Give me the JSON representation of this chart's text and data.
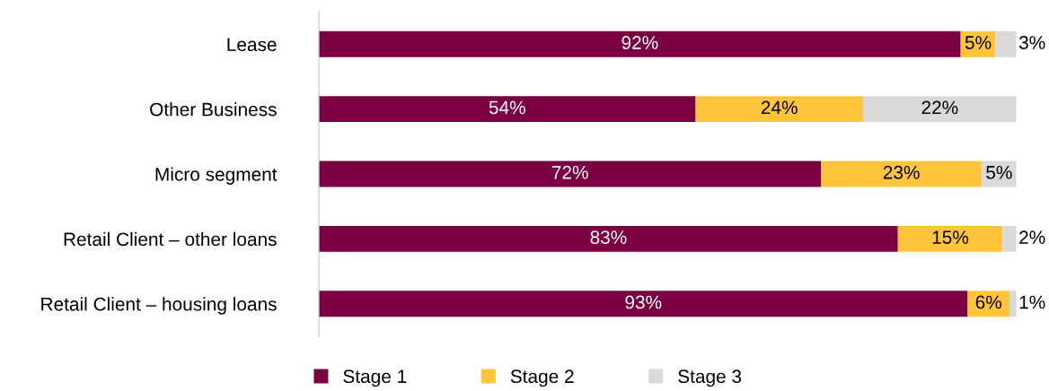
{
  "chart_data": {
    "type": "bar",
    "orientation": "horizontal",
    "stacked": true,
    "legend": "bottom",
    "grid": false,
    "tick_labels": "y",
    "categories": [
      "Lease",
      "Other Business",
      "Micro segment",
      "Retail Client – other loans",
      "Retail Client – housing loans"
    ],
    "series": [
      {
        "name": "Stage 1",
        "color": "#7b0041",
        "values": [
          92,
          54,
          72,
          83,
          93
        ],
        "value_labels": [
          "92%",
          "54%",
          "72%",
          "83%",
          "93%"
        ]
      },
      {
        "name": "Stage 2",
        "color": "#ffc33c",
        "values": [
          5,
          24,
          23,
          15,
          6
        ],
        "value_labels": [
          "5%",
          "24%",
          "23%",
          "15%",
          "6%"
        ]
      },
      {
        "name": "Stage 3",
        "color": "#d9d9d9",
        "values": [
          3,
          22,
          5,
          2,
          1
        ],
        "value_labels": [
          "3%",
          "22%",
          "5%",
          "2%",
          "1%"
        ]
      }
    ]
  }
}
